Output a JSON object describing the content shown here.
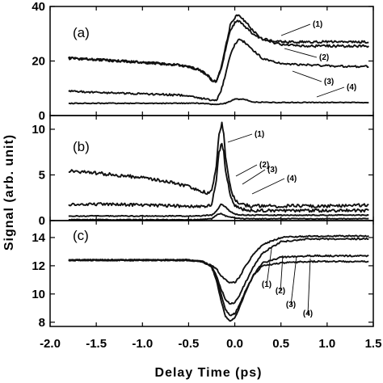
{
  "chart_data": {
    "type": "line",
    "xlabel": "Delay Time (ps)",
    "ylabel": "Signal (arb. unit)",
    "xlim": [
      -2.0,
      1.5
    ],
    "xticks": [
      -2.0,
      -1.5,
      -1.0,
      -0.5,
      0.0,
      0.5,
      1.0,
      1.5
    ],
    "xtick_labels": [
      "-2.0",
      "-1.5",
      "-1.0",
      "-0.5",
      "0.0",
      "0.5",
      "1.0",
      "1.5"
    ],
    "grid": false,
    "panels": [
      {
        "label": "(a)",
        "ylim": [
          0,
          40
        ],
        "yticks": [
          0,
          20,
          40
        ],
        "ytick_labels": [
          "0",
          "20",
          "40"
        ],
        "series": [
          {
            "name": "(1)",
            "x": [
              -1.8,
              -1.5,
              -1.0,
              -0.6,
              -0.4,
              -0.3,
              -0.25,
              -0.2,
              -0.15,
              -0.1,
              -0.05,
              0.0,
              0.05,
              0.1,
              0.2,
              0.3,
              0.5,
              0.8,
              1.2,
              1.45
            ],
            "y": [
              21,
              20.5,
              19.5,
              18.5,
              17,
              15,
              13,
              12.5,
              17,
              25,
              33,
              36,
              37,
              35,
              31,
              28,
              27,
              27,
              27,
              27
            ]
          },
          {
            "name": "(2)",
            "x": [
              -1.8,
              -1.5,
              -1.0,
              -0.6,
              -0.4,
              -0.3,
              -0.25,
              -0.2,
              -0.15,
              -0.1,
              -0.05,
              0.0,
              0.05,
              0.1,
              0.2,
              0.3,
              0.5,
              0.8,
              1.2,
              1.45
            ],
            "y": [
              21,
              20.5,
              19.5,
              18.5,
              17,
              15,
              13,
              12.5,
              17,
              24,
              31,
              34,
              35,
              33,
              30,
              28,
              26,
              25.5,
              25.5,
              25.5
            ]
          },
          {
            "name": "(3)",
            "x": [
              -1.8,
              -1.5,
              -1.0,
              -0.6,
              -0.4,
              -0.3,
              -0.25,
              -0.2,
              -0.15,
              -0.1,
              -0.05,
              0.0,
              0.05,
              0.1,
              0.2,
              0.3,
              0.5,
              0.8,
              1.2,
              1.45
            ],
            "y": [
              9,
              8.5,
              8,
              7.5,
              6.5,
              6,
              5.5,
              5.5,
              9,
              15,
              22,
              26,
              28,
              27,
              24,
              21,
              19,
              18.5,
              18,
              18
            ]
          },
          {
            "name": "(4)",
            "x": [
              -1.8,
              -1.5,
              -1.0,
              -0.6,
              -0.4,
              -0.3,
              -0.2,
              -0.1,
              0.0,
              0.1,
              0.2,
              0.4,
              0.8,
              1.2,
              1.45
            ],
            "y": [
              4.5,
              4.5,
              4.5,
              4.5,
              4.5,
              4.3,
              4.0,
              4.5,
              6.0,
              6.0,
              5.0,
              4.8,
              4.8,
              4.8,
              4.8
            ]
          }
        ]
      },
      {
        "label": "(b)",
        "ylim": [
          0,
          11.5
        ],
        "yticks": [
          0,
          5,
          10
        ],
        "ytick_labels": [
          "0",
          "5",
          "10"
        ],
        "series": [
          {
            "name": "(1)",
            "x": [
              -1.8,
              -1.5,
              -1.0,
              -0.6,
              -0.4,
              -0.3,
              -0.25,
              -0.2,
              -0.17,
              -0.14,
              -0.12,
              -0.1,
              -0.05,
              0.0,
              0.1,
              0.2,
              0.5,
              1.0,
              1.45
            ],
            "y": [
              5.5,
              5.2,
              4.7,
              4.0,
              3.4,
              3.0,
              3.2,
              6.0,
              9.5,
              10.7,
              9.5,
              7.0,
              3.8,
              2.2,
              1.7,
              1.6,
              1.6,
              1.6,
              1.7
            ]
          },
          {
            "name": "(2)",
            "x": [
              -1.8,
              -1.5,
              -1.0,
              -0.6,
              -0.4,
              -0.3,
              -0.25,
              -0.2,
              -0.17,
              -0.14,
              -0.12,
              -0.1,
              -0.05,
              0.0,
              0.1,
              0.2,
              0.5,
              1.0,
              1.45
            ],
            "y": [
              1.8,
              1.8,
              1.7,
              1.6,
              1.5,
              1.5,
              1.8,
              4.5,
              7.5,
              8.5,
              7.5,
              5.5,
              2.8,
              1.6,
              1.2,
              1.1,
              1.1,
              1.1,
              1.1
            ]
          },
          {
            "name": "(3)",
            "x": [
              -1.8,
              -1.0,
              -0.4,
              -0.25,
              -0.2,
              -0.15,
              -0.1,
              -0.05,
              0.0,
              0.1,
              0.5,
              1.0,
              1.45
            ],
            "y": [
              0.5,
              0.5,
              0.5,
              0.6,
              1.0,
              1.8,
              1.5,
              1.0,
              0.7,
              0.6,
              0.6,
              0.6,
              0.6
            ]
          },
          {
            "name": "(4)",
            "x": [
              -1.8,
              -1.0,
              -0.4,
              -0.25,
              -0.2,
              -0.15,
              -0.1,
              0.0,
              0.1,
              0.5,
              1.0,
              1.45
            ],
            "y": [
              0.1,
              0.1,
              0.1,
              0.2,
              0.6,
              0.8,
              0.5,
              0.3,
              0.2,
              0.2,
              0.2,
              0.2
            ]
          }
        ]
      },
      {
        "label": "(c)",
        "ylim": [
          7.7,
          15.2
        ],
        "yticks": [
          8,
          10,
          12,
          14
        ],
        "ytick_labels": [
          "8",
          "10",
          "12",
          "14"
        ],
        "series": [
          {
            "name": "(1)",
            "x": [
              -1.8,
              -1.0,
              -0.5,
              -0.35,
              -0.25,
              -0.2,
              -0.15,
              -0.1,
              -0.05,
              0.0,
              0.05,
              0.1,
              0.2,
              0.3,
              0.5,
              0.8,
              1.2,
              1.45
            ],
            "y": [
              12.4,
              12.4,
              12.4,
              12.3,
              12.0,
              11.8,
              11.3,
              11.0,
              10.8,
              10.8,
              11.2,
              11.8,
              12.8,
              13.5,
              14.0,
              14.1,
              14.1,
              14.1
            ]
          },
          {
            "name": "(2)",
            "x": [
              -1.8,
              -1.0,
              -0.5,
              -0.35,
              -0.25,
              -0.2,
              -0.15,
              -0.1,
              -0.05,
              0.0,
              0.05,
              0.1,
              0.2,
              0.3,
              0.5,
              0.8,
              1.2,
              1.45
            ],
            "y": [
              12.4,
              12.4,
              12.4,
              12.3,
              12.0,
              11.3,
              10.4,
              9.6,
              9.3,
              9.4,
              9.9,
              10.6,
              11.9,
              12.9,
              13.7,
              13.9,
              13.9,
              13.9
            ]
          },
          {
            "name": "(3)",
            "x": [
              -1.8,
              -1.0,
              -0.5,
              -0.35,
              -0.25,
              -0.2,
              -0.15,
              -0.1,
              -0.05,
              0.0,
              0.05,
              0.1,
              0.2,
              0.3,
              0.5,
              0.8,
              1.2,
              1.45
            ],
            "y": [
              12.4,
              12.4,
              12.4,
              12.3,
              11.9,
              11.1,
              10.0,
              8.9,
              8.5,
              8.6,
              9.2,
              10.0,
              11.3,
              12.2,
              12.6,
              12.7,
              12.7,
              12.7
            ]
          },
          {
            "name": "(4)",
            "x": [
              -1.8,
              -1.0,
              -0.5,
              -0.35,
              -0.25,
              -0.2,
              -0.15,
              -0.1,
              -0.05,
              0.0,
              0.05,
              0.1,
              0.2,
              0.3,
              0.5,
              0.8,
              1.2,
              1.45
            ],
            "y": [
              12.4,
              12.4,
              12.4,
              12.3,
              11.9,
              11.0,
              9.6,
              8.4,
              8.1,
              8.3,
              9.0,
              9.9,
              11.3,
              12.0,
              12.2,
              12.3,
              12.3,
              12.3
            ]
          }
        ]
      }
    ]
  }
}
